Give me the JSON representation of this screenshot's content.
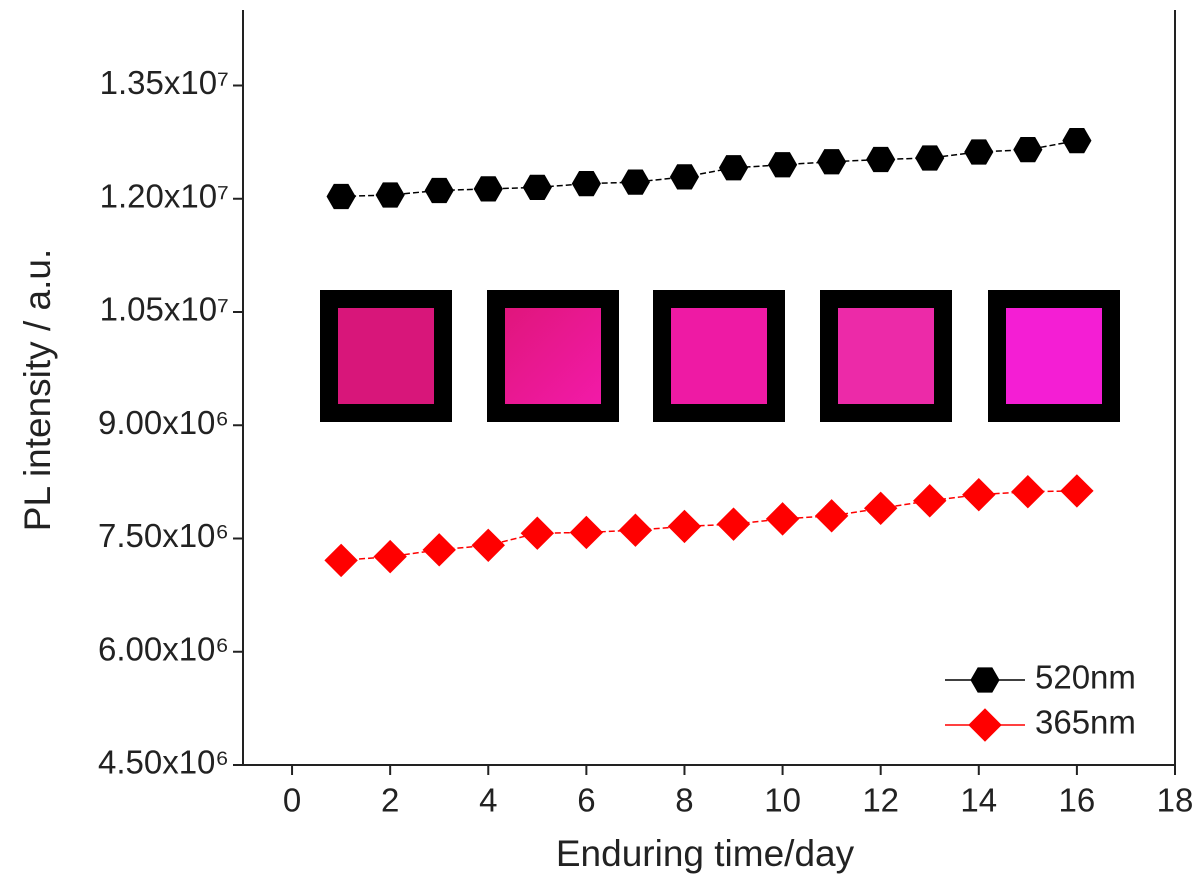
{
  "chart_data": {
    "type": "line",
    "x_label": "Enduring time/day",
    "y_label": "PL intensity / a.u.",
    "x": [
      1,
      2,
      3,
      4,
      5,
      6,
      7,
      8,
      9,
      10,
      11,
      12,
      13,
      14,
      15,
      16
    ],
    "series": [
      {
        "name": "520nm",
        "color": "#000000",
        "marker": "hexagon",
        "values": [
          12030000,
          12050000,
          12110000,
          12130000,
          12150000,
          12200000,
          12220000,
          12290000,
          12410000,
          12450000,
          12490000,
          12520000,
          12540000,
          12620000,
          12650000,
          12770000
        ]
      },
      {
        "name": "365nm",
        "color": "#ff0000",
        "marker": "diamond",
        "values": [
          7210000,
          7260000,
          7350000,
          7410000,
          7570000,
          7580000,
          7610000,
          7660000,
          7690000,
          7760000,
          7800000,
          7900000,
          8000000,
          8080000,
          8120000,
          8130000
        ]
      }
    ],
    "xlim": [
      -1,
      18
    ],
    "xticks": [
      0,
      2,
      4,
      6,
      8,
      10,
      12,
      14,
      16,
      18
    ],
    "ylim": [
      4500000,
      14500000
    ],
    "yticks": [
      {
        "value": 4500000,
        "label": "4.50x10⁶"
      },
      {
        "value": 6000000,
        "label": "6.00x10⁶"
      },
      {
        "value": 7500000,
        "label": "7.50x10⁶"
      },
      {
        "value": 9000000,
        "label": "9.00x10⁶"
      },
      {
        "value": 10500000,
        "label": "1.05x10⁷"
      },
      {
        "value": 12000000,
        "label": "1.20x10⁷"
      },
      {
        "value": 13500000,
        "label": "1.35x10⁷"
      }
    ],
    "legend": "lower right"
  }
}
